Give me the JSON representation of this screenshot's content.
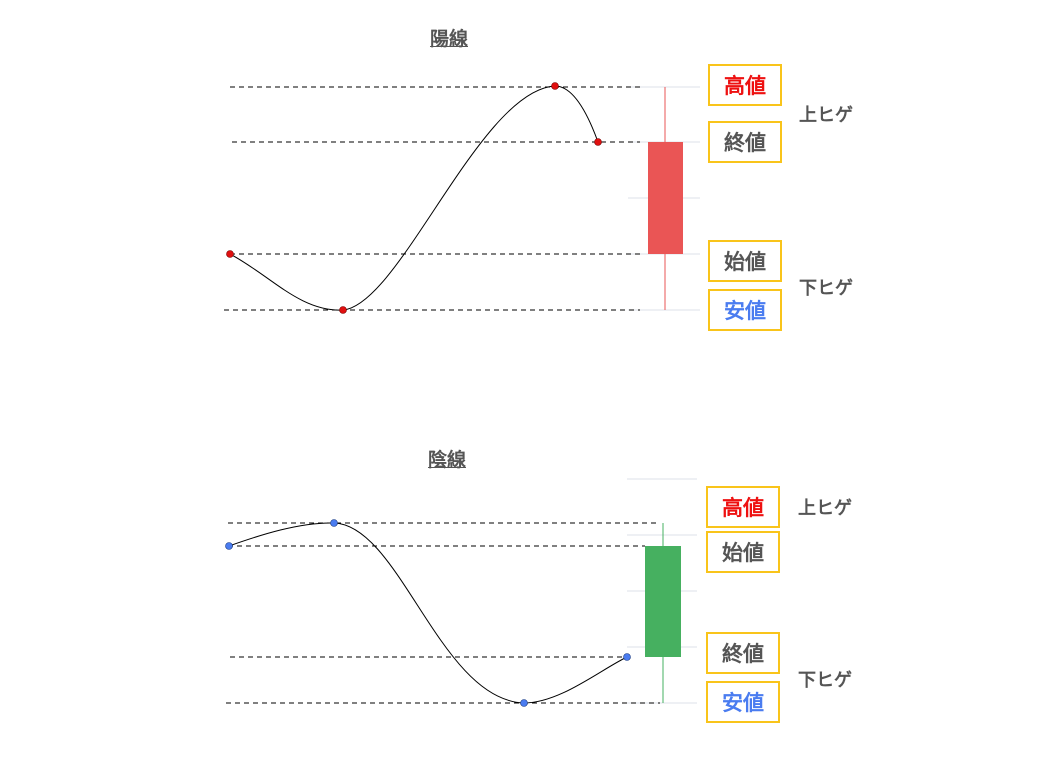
{
  "colors": {
    "high": "#ee1111",
    "low": "#4a7cf0",
    "label": "#555555",
    "box_border": "#f9c41a",
    "bull_body": "#ea5555",
    "bear_body": "#46b060"
  },
  "bullish": {
    "title": "陽線",
    "labels": {
      "high": "高値",
      "close": "終値",
      "open": "始値",
      "low": "安値"
    },
    "upper_shadow": "上ヒゲ",
    "lower_shadow": "下ヒゲ"
  },
  "bearish": {
    "title": "陰線",
    "labels": {
      "high": "高値",
      "open": "始値",
      "close": "終値",
      "low": "安値"
    },
    "upper_shadow": "上ヒゲ",
    "lower_shadow": "下ヒゲ"
  }
}
